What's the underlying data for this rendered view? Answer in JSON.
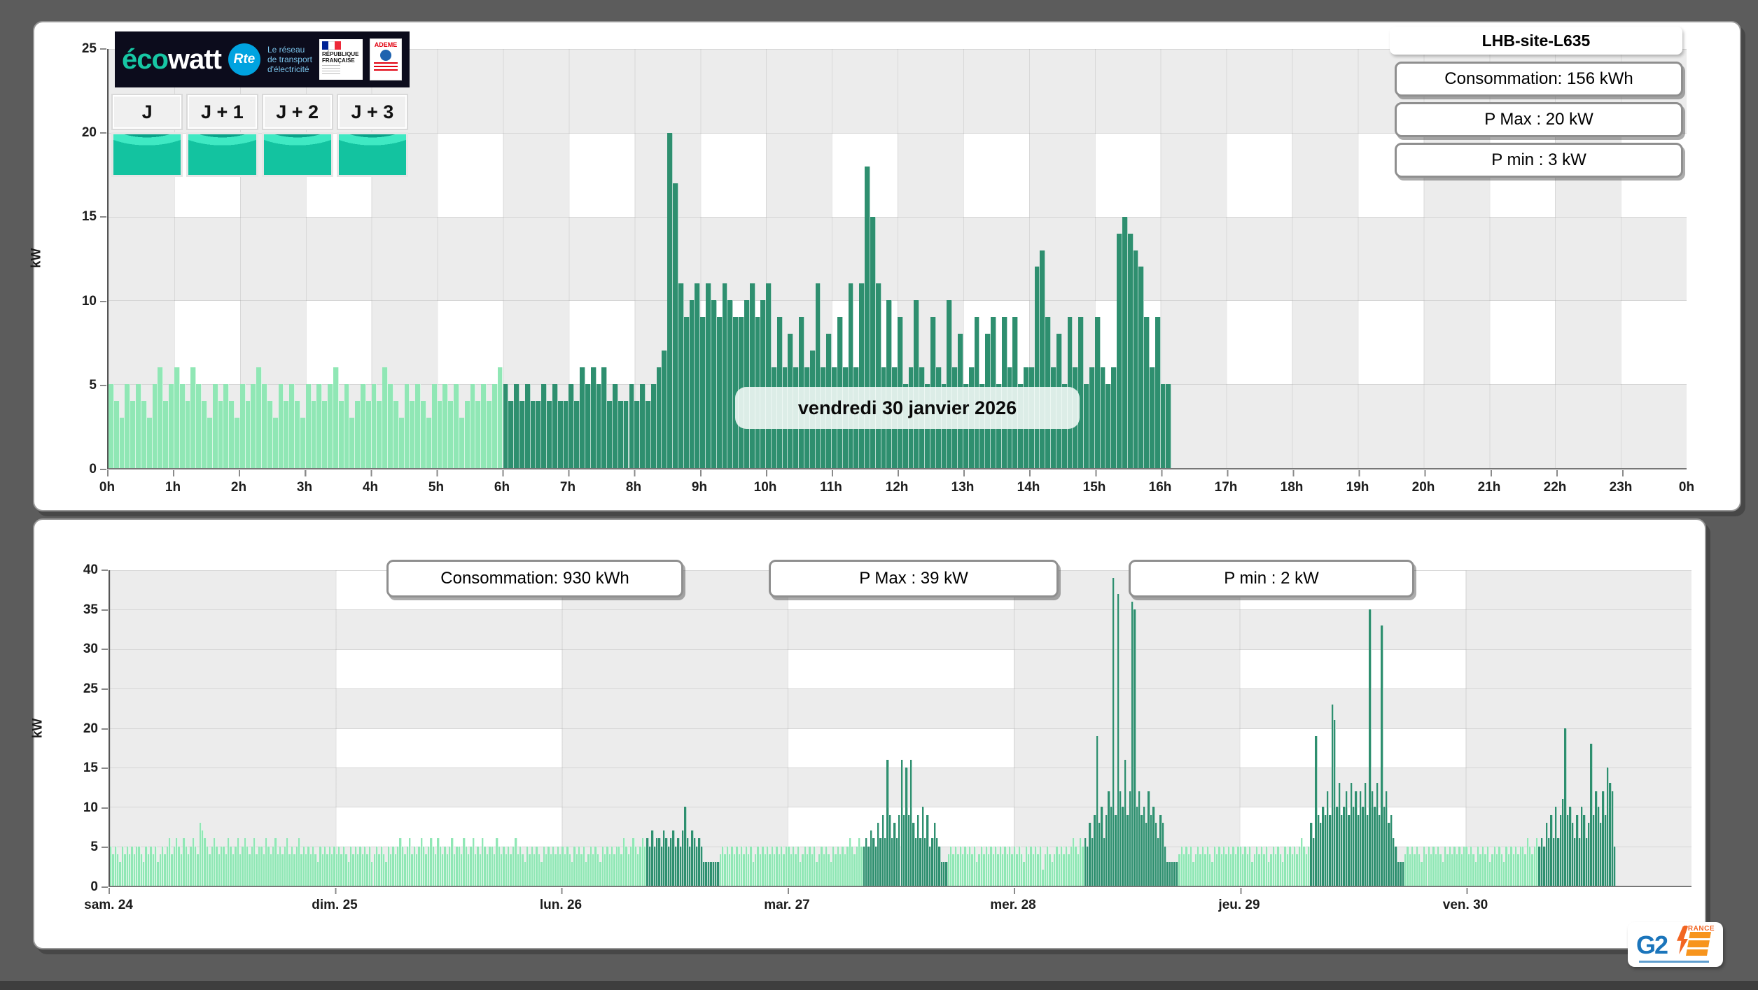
{
  "site": {
    "label": "LHB-site-L635"
  },
  "top_stats": [
    "Consommation: 156 kWh",
    "P Max :  20 kW",
    "P min : 3 kW"
  ],
  "bottom_stats": [
    "Consommation: 930 kWh",
    "P Max :  39 kW",
    "P min : 2 kW"
  ],
  "date_label": "vendredi 30 janvier 2026",
  "header": {
    "ecowatt_eco": "éco",
    "ecowatt_watt": "watt",
    "rte_name": "Rte",
    "rte_tagline": "Le réseau\nde transport\nd'électricité",
    "republique": "RÉPUBLIQUE\nFRANÇAISE",
    "ademe": "ADEME",
    "day_buttons": [
      "J",
      "J + 1",
      "J + 2",
      "J + 3"
    ]
  },
  "g2e": {
    "name": "G2",
    "country": "FRANCE"
  },
  "colors": {
    "standby_green": "#90e7b5",
    "active_green": "#2e8f6f",
    "grid_gray": "#ececec",
    "page_bg": "#5c5c5c"
  },
  "chart_data": [
    {
      "type": "bar",
      "title": "LHB-site-L635",
      "ylabel": "kW",
      "ylim": [
        0,
        25
      ],
      "y_ticks": [
        0,
        5,
        10,
        15,
        20,
        25
      ],
      "interval_minutes": 5,
      "axis_minutes": 1440,
      "x_tick_labels": [
        "0h",
        "1h",
        "2h",
        "3h",
        "4h",
        "5h",
        "6h",
        "7h",
        "8h",
        "9h",
        "10h",
        "11h",
        "12h",
        "13h",
        "14h",
        "15h",
        "16h",
        "17h",
        "18h",
        "19h",
        "20h",
        "21h",
        "22h",
        "23h",
        "0h"
      ],
      "annotation": "vendredi 30 janvier 2026",
      "active_from_index": 72,
      "values": [
        5,
        4,
        3,
        5,
        4,
        5,
        4,
        3,
        5,
        6,
        4,
        5,
        6,
        5,
        4,
        6,
        5,
        4,
        3,
        5,
        4,
        5,
        4,
        3,
        5,
        4,
        5,
        6,
        5,
        4,
        3,
        5,
        4,
        5,
        4,
        3,
        5,
        4,
        5,
        4,
        5,
        6,
        4,
        5,
        3,
        4,
        5,
        4,
        5,
        4,
        6,
        5,
        4,
        3,
        5,
        4,
        5,
        4,
        3,
        5,
        4,
        5,
        4,
        5,
        3,
        4,
        5,
        4,
        5,
        4,
        5,
        6,
        5,
        4,
        5,
        4,
        5,
        4,
        4,
        5,
        4,
        5,
        4,
        4,
        5,
        4,
        6,
        5,
        6,
        5,
        6,
        4,
        5,
        4,
        4,
        5,
        4,
        5,
        4,
        5,
        6,
        7,
        20,
        17,
        11,
        9,
        10,
        11,
        9,
        11,
        10,
        9,
        11,
        10,
        9,
        9,
        10,
        11,
        9,
        10,
        11,
        6,
        9,
        6,
        8,
        6,
        9,
        6,
        7,
        11,
        6,
        8,
        6,
        9,
        6,
        11,
        6,
        11,
        18,
        15,
        11,
        6,
        10,
        6,
        9,
        5,
        6,
        10,
        6,
        5,
        9,
        6,
        5,
        10,
        6,
        8,
        5,
        6,
        9,
        5,
        8,
        9,
        5,
        9,
        6,
        9,
        5,
        6,
        6,
        12,
        13,
        9,
        6,
        8,
        5,
        9,
        6,
        9,
        5,
        6,
        9,
        6,
        5,
        6,
        14,
        15,
        14,
        13,
        12,
        9,
        6,
        9,
        5,
        5
      ]
    },
    {
      "type": "bar",
      "title": "",
      "ylabel": "kW",
      "ylim": [
        0,
        40
      ],
      "y_ticks": [
        0,
        5,
        10,
        15,
        20,
        25,
        30,
        35,
        40
      ],
      "interval_minutes": 15,
      "x_tick_labels": [
        "sam. 24",
        "dim. 25",
        "lun. 26",
        "mar. 27",
        "mer. 28",
        "jeu. 29",
        "ven. 30"
      ],
      "days": [
        {
          "label": "sam. 24",
          "active_range": null,
          "values": [
            5,
            4,
            5,
            4,
            3,
            5,
            4,
            5,
            4,
            5,
            4,
            5,
            5,
            4,
            3,
            5,
            4,
            5,
            4,
            5,
            3,
            4,
            5,
            4,
            5,
            6,
            4,
            5,
            6,
            5,
            4,
            6,
            5,
            4,
            5,
            6,
            5,
            4,
            8,
            7,
            6,
            5,
            4,
            5,
            6,
            5,
            4,
            5,
            5,
            4,
            6,
            5,
            4,
            5,
            6,
            4,
            5,
            6,
            5,
            4,
            5,
            6,
            4,
            5,
            5,
            4,
            6,
            5,
            4,
            5,
            6,
            4,
            5,
            4,
            5,
            6,
            4,
            5,
            4,
            5,
            6,
            4,
            5,
            4,
            5,
            4,
            5,
            4,
            3,
            5,
            4,
            5,
            4,
            5,
            4,
            5
          ]
        },
        {
          "label": "dim. 25",
          "active_range": null,
          "values": [
            4,
            5,
            4,
            5,
            4,
            3,
            5,
            4,
            5,
            4,
            5,
            4,
            5,
            4,
            5,
            3,
            4,
            5,
            4,
            5,
            4,
            3,
            5,
            4,
            5,
            4,
            5,
            6,
            5,
            4,
            5,
            6,
            4,
            5,
            4,
            5,
            6,
            5,
            4,
            5,
            6,
            5,
            4,
            6,
            5,
            4,
            5,
            4,
            5,
            6,
            4,
            5,
            5,
            4,
            6,
            5,
            4,
            5,
            6,
            4,
            5,
            4,
            6,
            5,
            4,
            5,
            5,
            4,
            6,
            5,
            4,
            5,
            4,
            5,
            4,
            5,
            6,
            4,
            5,
            4,
            3,
            5,
            4,
            5,
            4,
            5,
            4,
            3,
            5,
            4,
            5,
            4,
            5,
            4,
            5,
            4
          ]
        },
        {
          "label": "lun. 26",
          "active_range": [
            36,
            67
          ],
          "values": [
            5,
            4,
            5,
            4,
            3,
            5,
            4,
            5,
            4,
            5,
            3,
            4,
            5,
            4,
            5,
            4,
            3,
            5,
            4,
            5,
            4,
            5,
            4,
            5,
            5,
            4,
            6,
            5,
            4,
            5,
            6,
            5,
            4,
            5,
            6,
            5,
            6,
            5,
            7,
            5,
            6,
            6,
            5,
            7,
            6,
            5,
            6,
            7,
            5,
            6,
            5,
            7,
            10,
            6,
            5,
            7,
            6,
            5,
            6,
            5,
            3,
            3,
            3,
            3,
            3,
            3,
            3,
            4,
            5,
            4,
            5,
            4,
            5,
            4,
            5,
            4,
            5,
            4,
            5,
            4,
            5,
            3,
            4,
            5,
            4,
            5,
            4,
            5,
            4,
            5,
            4,
            5,
            4,
            5,
            4,
            5
          ]
        },
        {
          "label": "mar. 27",
          "active_range": [
            32,
            68
          ],
          "values": [
            5,
            4,
            5,
            4,
            5,
            3,
            4,
            5,
            4,
            5,
            4,
            5,
            3,
            4,
            5,
            4,
            5,
            4,
            3,
            5,
            4,
            5,
            4,
            5,
            4,
            5,
            6,
            5,
            4,
            5,
            6,
            5,
            5,
            6,
            5,
            7,
            6,
            5,
            8,
            6,
            9,
            6,
            16,
            9,
            6,
            8,
            6,
            9,
            16,
            9,
            15,
            9,
            16,
            8,
            6,
            9,
            6,
            10,
            6,
            9,
            5,
            6,
            8,
            6,
            5,
            3,
            3,
            3,
            4,
            5,
            4,
            5,
            4,
            5,
            4,
            5,
            4,
            5,
            4,
            5,
            3,
            4,
            5,
            4,
            5,
            4,
            5,
            4,
            5,
            4,
            5,
            4,
            5,
            4,
            5,
            4
          ]
        },
        {
          "label": "mer. 28",
          "active_range": [
            30,
            70
          ],
          "values": [
            5,
            4,
            5,
            4,
            3,
            5,
            4,
            5,
            4,
            5,
            4,
            5,
            2,
            4,
            5,
            4,
            3,
            4,
            5,
            4,
            5,
            4,
            5,
            4,
            5,
            6,
            5,
            4,
            6,
            5,
            6,
            5,
            8,
            6,
            9,
            19,
            8,
            10,
            6,
            9,
            12,
            10,
            39,
            9,
            37,
            12,
            10,
            16,
            9,
            12,
            36,
            35,
            10,
            12,
            9,
            10,
            8,
            12,
            9,
            10,
            8,
            6,
            9,
            8,
            5,
            3,
            3,
            3,
            3,
            3,
            4,
            5,
            4,
            5,
            4,
            5,
            3,
            4,
            5,
            4,
            5,
            4,
            5,
            4,
            3,
            5,
            4,
            5,
            4,
            5,
            4,
            5,
            4,
            5,
            4,
            5
          ]
        },
        {
          "label": "jeu. 29",
          "active_range": [
            30,
            70
          ],
          "values": [
            5,
            4,
            5,
            4,
            5,
            3,
            4,
            5,
            4,
            5,
            4,
            5,
            3,
            4,
            5,
            4,
            5,
            4,
            3,
            5,
            4,
            5,
            4,
            5,
            4,
            5,
            6,
            5,
            4,
            5,
            8,
            6,
            19,
            9,
            8,
            10,
            9,
            12,
            9,
            23,
            21,
            10,
            13,
            9,
            10,
            12,
            9,
            13,
            10,
            12,
            9,
            12,
            10,
            13,
            9,
            35,
            12,
            10,
            13,
            9,
            33,
            10,
            12,
            8,
            9,
            6,
            5,
            3,
            3,
            3,
            4,
            5,
            4,
            5,
            4,
            5,
            4,
            3,
            5,
            4,
            5,
            4,
            5,
            4,
            5,
            4,
            3,
            5,
            4,
            5,
            4,
            5,
            4,
            5,
            4,
            5
          ]
        },
        {
          "label": "ven. 30",
          "active_range": [
            31,
            64
          ],
          "values": [
            5,
            4,
            5,
            4,
            3,
            5,
            4,
            5,
            4,
            5,
            3,
            4,
            5,
            4,
            5,
            4,
            3,
            5,
            4,
            5,
            4,
            5,
            4,
            5,
            5,
            4,
            6,
            5,
            4,
            5,
            6,
            5,
            6,
            5,
            8,
            6,
            9,
            6,
            10,
            6,
            9,
            11,
            20,
            9,
            10,
            8,
            6,
            9,
            6,
            10,
            9,
            6,
            8,
            18,
            9,
            12,
            10,
            8,
            12,
            9,
            15,
            13,
            12,
            5,
            0,
            0,
            0,
            0,
            0,
            0,
            0,
            0,
            0,
            0,
            0,
            0,
            0,
            0,
            0,
            0,
            0,
            0,
            0,
            0,
            0,
            0,
            0,
            0,
            0,
            0,
            0,
            0,
            0,
            0,
            0,
            0
          ]
        }
      ]
    }
  ]
}
